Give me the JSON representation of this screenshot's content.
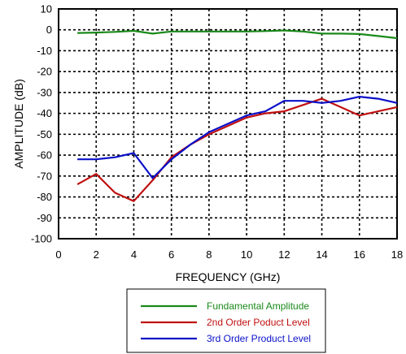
{
  "chart_data": {
    "type": "line",
    "title": "",
    "xlabel": "FREQUENCY (GHz)",
    "ylabel": "AMPLITUDE (dB)",
    "xlim": [
      0,
      18
    ],
    "ylim": [
      -100,
      10
    ],
    "xticks": [
      0,
      2,
      4,
      6,
      8,
      10,
      12,
      14,
      16,
      18
    ],
    "yticks": [
      10,
      0,
      -10,
      -20,
      -30,
      -40,
      -50,
      -60,
      -70,
      -80,
      -90,
      -100
    ],
    "grid": true,
    "legend_position": "bottom",
    "series": [
      {
        "name": "Fundamental Amplitude",
        "color": "#1a8a1a",
        "x": [
          1,
          2,
          3,
          4,
          5,
          6,
          7,
          8,
          9,
          10,
          11,
          12,
          13,
          14,
          15,
          16,
          17,
          18
        ],
        "y": [
          -1.5,
          -1.3,
          -1.0,
          -0.5,
          -1.8,
          -0.8,
          -0.8,
          -0.8,
          -0.8,
          -0.8,
          -0.6,
          -0.3,
          -0.8,
          -1.8,
          -1.8,
          -2.0,
          -3.0,
          -4.0
        ]
      },
      {
        "name": "2nd Order Poduct Level",
        "color": "#c01010",
        "x": [
          1,
          2,
          3,
          4,
          5,
          6,
          7,
          8,
          9,
          10,
          11,
          12,
          13,
          14,
          15,
          16,
          17,
          18
        ],
        "y": [
          -74,
          -69,
          -78,
          -82,
          -72,
          -61,
          -55,
          -50,
          -46,
          -42,
          -40,
          -39,
          -36,
          -33,
          -37,
          -41,
          -39,
          -37
        ]
      },
      {
        "name": "3rd Order Product Level",
        "color": "#0a10c8",
        "x": [
          1,
          2,
          3,
          4,
          5,
          6,
          7,
          8,
          9,
          10,
          11,
          12,
          13,
          14,
          15,
          16,
          17,
          18
        ],
        "y": [
          -62,
          -62,
          -61,
          -59,
          -71,
          -62,
          -55,
          -49,
          -45,
          -41,
          -39,
          -34,
          -34,
          -35,
          -34,
          -32,
          -33,
          -35
        ]
      }
    ]
  }
}
